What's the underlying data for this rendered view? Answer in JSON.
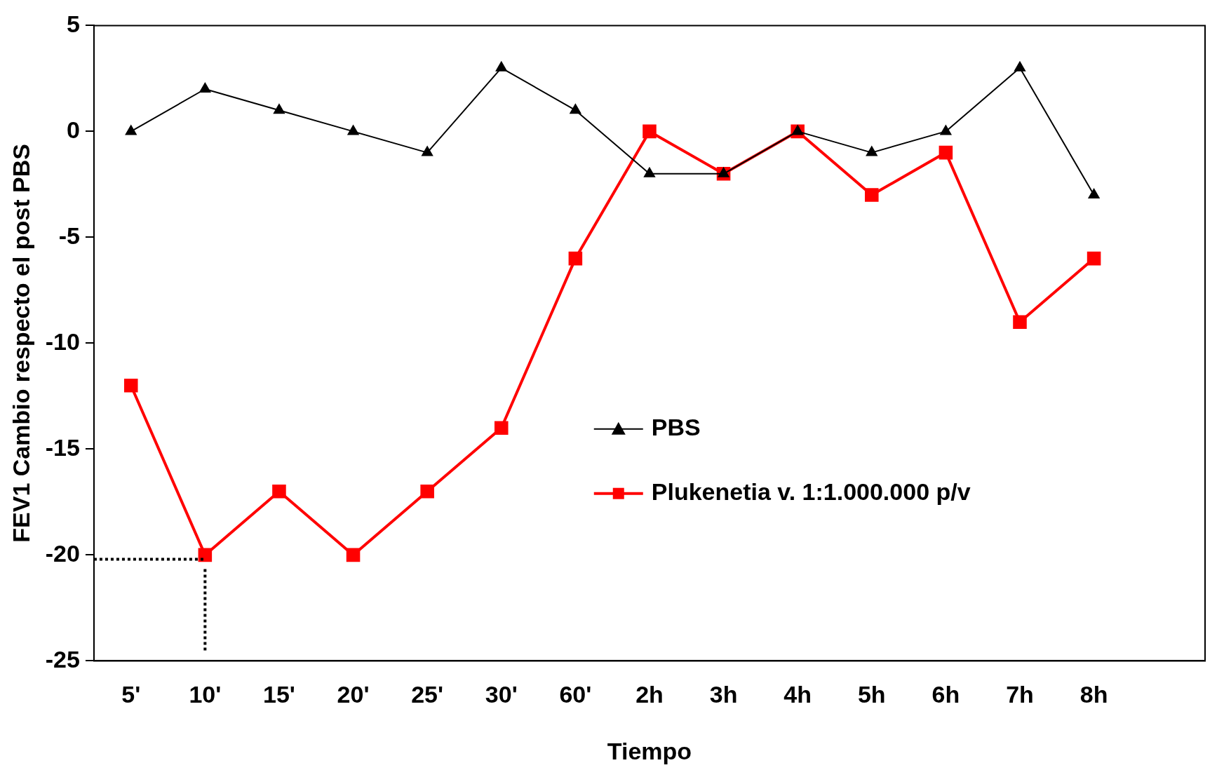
{
  "chart_data": {
    "type": "line",
    "xlabel": "Tiempo",
    "ylabel": "FEV1 Cambio respecto el post PBS",
    "categories": [
      "5'",
      "10'",
      "15'",
      "20'",
      "25'",
      "30'",
      "60'",
      "2h",
      "3h",
      "4h",
      "5h",
      "6h",
      "7h",
      "8h"
    ],
    "ylim": [
      -25,
      5
    ],
    "yticks": [
      -25,
      -20,
      -15,
      -10,
      -5,
      0,
      5
    ],
    "grid": false,
    "legend": "right",
    "series": [
      {
        "name": "PBS",
        "color": "#000000",
        "marker": "triangle",
        "values": [
          0,
          2,
          1,
          0,
          -1,
          3,
          1,
          -2,
          -2,
          0,
          -1,
          0,
          3,
          -3
        ]
      },
      {
        "name": "Plukenetia v. 1:1.000.000 p/v",
        "color": "#ff0000",
        "marker": "square",
        "values": [
          -12,
          -20,
          -17,
          -20,
          -17,
          -14,
          -6,
          0,
          -2,
          0,
          -3,
          -1,
          -9,
          -6
        ]
      }
    ],
    "ref_lines": [
      {
        "axis": "y",
        "value": -20.2,
        "color": "#000000",
        "line_style": "dotted"
      },
      {
        "axis": "x",
        "value": "10'",
        "color": "#000000",
        "line_style": "dotted"
      }
    ]
  }
}
